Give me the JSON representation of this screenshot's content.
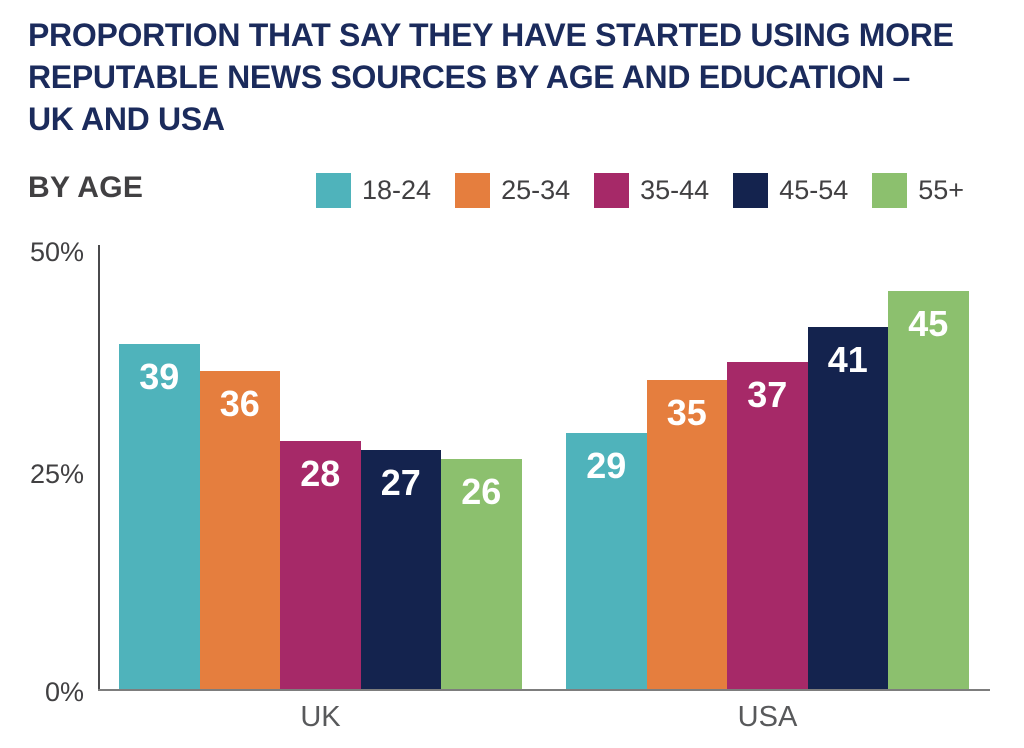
{
  "page": {
    "title_lines": [
      "PROPORTION THAT SAY THEY HAVE STARTED USING MORE",
      "REPUTABLE NEWS SOURCES BY AGE AND EDUCATION –",
      "UK AND USA"
    ],
    "section_label": "BY AGE"
  },
  "legend": [
    {
      "label": "18-24",
      "color": "#4FB3BB"
    },
    {
      "label": "25-34",
      "color": "#E57E3E"
    },
    {
      "label": "35-44",
      "color": "#A62968"
    },
    {
      "label": "45-54",
      "color": "#14234E"
    },
    {
      "label": "55+",
      "color": "#8CC06E"
    }
  ],
  "chart_data": {
    "type": "bar",
    "title": "PROPORTION THAT SAY THEY HAVE STARTED USING MORE REPUTABLE NEWS SOURCES BY AGE AND EDUCATION – UK AND USA",
    "subtitle": "BY AGE",
    "categories": [
      "UK",
      "USA"
    ],
    "series": [
      {
        "name": "18-24",
        "color": "#4FB3BB",
        "values": [
          39,
          29
        ]
      },
      {
        "name": "25-34",
        "color": "#E57E3E",
        "values": [
          36,
          35
        ]
      },
      {
        "name": "35-44",
        "color": "#A62968",
        "values": [
          28,
          37
        ]
      },
      {
        "name": "45-54",
        "color": "#14234E",
        "values": [
          27,
          41
        ]
      },
      {
        "name": "55+",
        "color": "#8CC06E",
        "values": [
          26,
          45
        ]
      }
    ],
    "yticks": [
      "50%",
      "25%",
      "0%"
    ],
    "ylim": [
      0,
      50
    ],
    "grid": false,
    "value_labels": true,
    "legend_position": "top"
  },
  "colors": {
    "title": "#1B2B5C",
    "label_text": "#414042",
    "tick_text": "#414042",
    "category_text": "#58595B",
    "value_text": "#FFFFFF",
    "y_axis": "#4A4A4C",
    "baseline": "#7D7D7D",
    "background": "#FFFFFF"
  }
}
